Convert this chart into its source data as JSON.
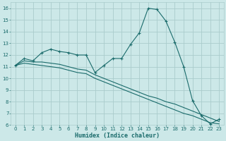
{
  "xlabel": "Humidex (Indice chaleur)",
  "bg_color": "#cce8e8",
  "grid_color": "#aacccc",
  "line_color": "#1a6b6b",
  "xlim": [
    -0.5,
    23.5
  ],
  "ylim": [
    6,
    16.5
  ],
  "xticks": [
    0,
    1,
    2,
    3,
    4,
    5,
    6,
    7,
    8,
    9,
    10,
    11,
    12,
    13,
    14,
    15,
    16,
    17,
    18,
    19,
    20,
    21,
    22,
    23
  ],
  "yticks": [
    6,
    7,
    8,
    9,
    10,
    11,
    12,
    13,
    14,
    15,
    16
  ],
  "series_main": [
    11.1,
    11.7,
    11.5,
    12.2,
    12.5,
    12.3,
    12.2,
    12.0,
    12.0,
    10.5,
    11.1,
    11.7,
    11.7,
    12.9,
    13.9,
    16.0,
    15.9,
    14.9,
    13.1,
    11.0,
    8.1,
    6.8,
    6.1,
    6.5
  ],
  "series_mid": [
    11.1,
    11.5,
    11.4,
    11.4,
    11.3,
    11.2,
    11.0,
    10.8,
    10.7,
    10.3,
    10.0,
    9.7,
    9.4,
    9.1,
    8.8,
    8.5,
    8.3,
    8.0,
    7.8,
    7.5,
    7.2,
    6.9,
    6.6,
    6.3
  ],
  "series_low": [
    11.1,
    11.3,
    11.2,
    11.1,
    11.0,
    10.9,
    10.7,
    10.5,
    10.4,
    10.0,
    9.7,
    9.4,
    9.1,
    8.8,
    8.5,
    8.2,
    7.9,
    7.6,
    7.3,
    7.0,
    6.8,
    6.5,
    6.2,
    6.1
  ]
}
